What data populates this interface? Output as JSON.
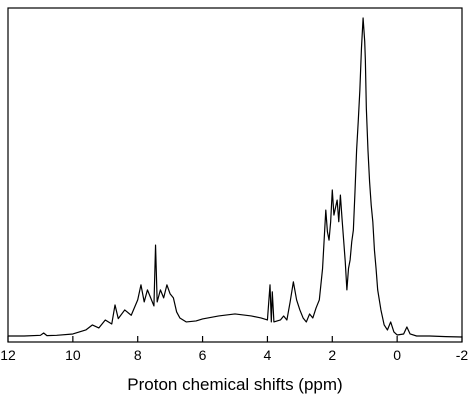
{
  "chart_data": {
    "type": "line",
    "xlabel": "Proton chemical shifts (ppm)",
    "x": [
      12,
      11.5,
      11,
      10.9,
      10.8,
      10.5,
      10,
      9.8,
      9.6,
      9.4,
      9.2,
      9.0,
      8.8,
      8.7,
      8.6,
      8.4,
      8.2,
      8.0,
      7.9,
      7.8,
      7.7,
      7.6,
      7.5,
      7.45,
      7.4,
      7.3,
      7.2,
      7.1,
      7.0,
      6.9,
      6.8,
      6.7,
      6.5,
      6.2,
      6.0,
      5.5,
      5.0,
      4.5,
      4.2,
      4.0,
      3.92,
      3.88,
      3.85,
      3.8,
      3.6,
      3.5,
      3.4,
      3.3,
      3.2,
      3.1,
      3.0,
      2.9,
      2.8,
      2.7,
      2.6,
      2.5,
      2.4,
      2.3,
      2.2,
      2.15,
      2.1,
      2.05,
      2.0,
      1.95,
      1.85,
      1.8,
      1.75,
      1.7,
      1.65,
      1.6,
      1.55,
      1.5,
      1.45,
      1.4,
      1.35,
      1.3,
      1.25,
      1.2,
      1.15,
      1.1,
      1.05,
      1.0,
      0.98,
      0.95,
      0.9,
      0.85,
      0.8,
      0.75,
      0.7,
      0.65,
      0.6,
      0.5,
      0.4,
      0.3,
      0.2,
      0.1,
      0,
      -0.2,
      -0.3,
      -0.4,
      -0.6,
      -1,
      -1.5,
      -2
    ],
    "values": [
      1.8,
      1.8,
      2.0,
      2.7,
      1.9,
      2.0,
      2.4,
      3.0,
      3.6,
      5.1,
      4.2,
      6.6,
      5.4,
      11.1,
      7.0,
      9.6,
      8.0,
      12.6,
      17.1,
      12.0,
      15.6,
      13.2,
      10.8,
      29.0,
      12.0,
      15.6,
      13.2,
      17.1,
      14.4,
      13.2,
      9.0,
      7.2,
      6.0,
      6.3,
      6.9,
      7.8,
      8.4,
      7.8,
      7.2,
      6.6,
      17.1,
      6.0,
      15.0,
      6.0,
      6.6,
      7.8,
      6.6,
      12.0,
      18.0,
      12.6,
      9.6,
      7.2,
      6.0,
      8.4,
      7.2,
      10.2,
      12.6,
      22.0,
      39.5,
      33.0,
      30.5,
      36.0,
      45.5,
      38.0,
      42.5,
      36.0,
      44.0,
      37.0,
      30.5,
      24.0,
      15.6,
      22.0,
      24.6,
      30.0,
      33.5,
      45.0,
      57.5,
      66.0,
      75.4,
      88.0,
      97.0,
      90.0,
      84.4,
      70.0,
      57.5,
      48.0,
      41.0,
      36.0,
      27.5,
      22.0,
      15.6,
      9.6,
      5.1,
      3.6,
      6.0,
      3.0,
      2.1,
      2.4,
      4.5,
      2.4,
      1.8,
      1.8,
      1.6,
      1.5
    ],
    "color": "#000000",
    "xlim": [
      12,
      -2
    ],
    "xticks": [
      12,
      10,
      8,
      6,
      4,
      2,
      0,
      -2
    ],
    "ylim": [
      0,
      100
    ]
  }
}
